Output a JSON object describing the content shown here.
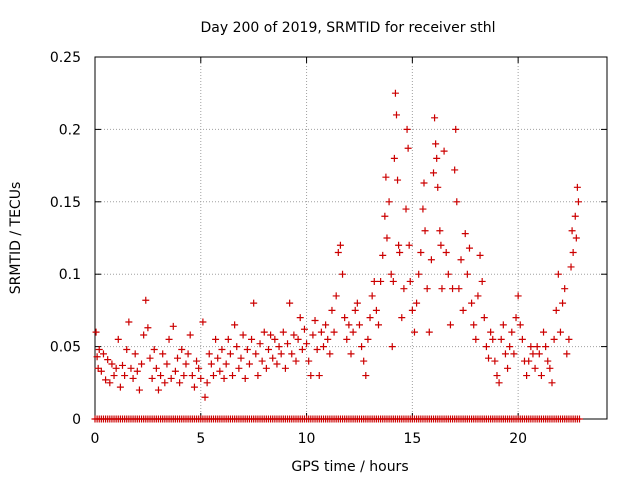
{
  "chart_data": {
    "type": "scatter",
    "title": "Day 200 of 2019, SRMTID for receiver sthl",
    "xlabel": "GPS time / hours",
    "ylabel": "SRMTID / TECUs",
    "xlim": [
      0,
      24.2
    ],
    "ylim": [
      0,
      0.25
    ],
    "x_ticks": [
      0,
      5,
      10,
      15,
      20
    ],
    "x_tick_labels": [
      "0",
      "5",
      "10",
      "15",
      "20"
    ],
    "y_ticks": [
      0,
      0.05,
      0.1,
      0.15,
      0.2,
      0.25
    ],
    "y_tick_labels": [
      "0",
      "0.05",
      "0.1",
      "0.15",
      "0.2",
      "0.25"
    ],
    "grid": true,
    "marker": "plus",
    "series": [
      {
        "name": "SRMTID",
        "color": "#cc0000",
        "points": [
          [
            0.05,
            0.06
          ],
          [
            0.1,
            0.043
          ],
          [
            0.15,
            0.035
          ],
          [
            0.2,
            0.048
          ],
          [
            0.3,
            0.033
          ],
          [
            0.4,
            0.045
          ],
          [
            0.5,
            0.027
          ],
          [
            0.6,
            0.041
          ],
          [
            0.7,
            0.025
          ],
          [
            0.8,
            0.038
          ],
          [
            0.9,
            0.03
          ],
          [
            1.0,
            0.035
          ],
          [
            1.1,
            0.055
          ],
          [
            1.2,
            0.022
          ],
          [
            1.3,
            0.037
          ],
          [
            1.4,
            0.03
          ],
          [
            1.5,
            0.048
          ],
          [
            1.6,
            0.067
          ],
          [
            1.7,
            0.035
          ],
          [
            1.8,
            0.028
          ],
          [
            1.9,
            0.045
          ],
          [
            2.0,
            0.033
          ],
          [
            2.1,
            0.02
          ],
          [
            2.2,
            0.038
          ],
          [
            2.3,
            0.058
          ],
          [
            2.4,
            0.082
          ],
          [
            2.5,
            0.063
          ],
          [
            2.6,
            0.042
          ],
          [
            2.7,
            0.028
          ],
          [
            2.8,
            0.048
          ],
          [
            2.9,
            0.035
          ],
          [
            3.0,
            0.02
          ],
          [
            3.1,
            0.03
          ],
          [
            3.2,
            0.045
          ],
          [
            3.3,
            0.025
          ],
          [
            3.4,
            0.038
          ],
          [
            3.5,
            0.055
          ],
          [
            3.6,
            0.028
          ],
          [
            3.7,
            0.064
          ],
          [
            3.8,
            0.033
          ],
          [
            3.9,
            0.042
          ],
          [
            4.0,
            0.025
          ],
          [
            4.1,
            0.048
          ],
          [
            4.2,
            0.03
          ],
          [
            4.3,
            0.038
          ],
          [
            4.4,
            0.045
          ],
          [
            4.5,
            0.058
          ],
          [
            4.6,
            0.03
          ],
          [
            4.7,
            0.022
          ],
          [
            4.8,
            0.04
          ],
          [
            4.9,
            0.035
          ],
          [
            5.0,
            0.028
          ],
          [
            5.1,
            0.067
          ],
          [
            5.2,
            0.015
          ],
          [
            5.3,
            0.025
          ],
          [
            5.4,
            0.045
          ],
          [
            5.5,
            0.038
          ],
          [
            5.6,
            0.03
          ],
          [
            5.7,
            0.055
          ],
          [
            5.8,
            0.042
          ],
          [
            5.9,
            0.033
          ],
          [
            6.0,
            0.048
          ],
          [
            6.1,
            0.028
          ],
          [
            6.2,
            0.038
          ],
          [
            6.3,
            0.055
          ],
          [
            6.4,
            0.045
          ],
          [
            6.5,
            0.03
          ],
          [
            6.6,
            0.065
          ],
          [
            6.7,
            0.05
          ],
          [
            6.8,
            0.035
          ],
          [
            6.9,
            0.042
          ],
          [
            7.0,
            0.058
          ],
          [
            7.1,
            0.028
          ],
          [
            7.2,
            0.048
          ],
          [
            7.3,
            0.038
          ],
          [
            7.4,
            0.055
          ],
          [
            7.5,
            0.08
          ],
          [
            7.6,
            0.045
          ],
          [
            7.7,
            0.03
          ],
          [
            7.8,
            0.052
          ],
          [
            7.9,
            0.04
          ],
          [
            8.0,
            0.06
          ],
          [
            8.1,
            0.035
          ],
          [
            8.2,
            0.048
          ],
          [
            8.3,
            0.058
          ],
          [
            8.4,
            0.042
          ],
          [
            8.5,
            0.055
          ],
          [
            8.6,
            0.038
          ],
          [
            8.7,
            0.05
          ],
          [
            8.8,
            0.045
          ],
          [
            8.9,
            0.06
          ],
          [
            9.0,
            0.035
          ],
          [
            9.1,
            0.052
          ],
          [
            9.2,
            0.08
          ],
          [
            9.3,
            0.045
          ],
          [
            9.4,
            0.058
          ],
          [
            9.5,
            0.04
          ],
          [
            9.6,
            0.055
          ],
          [
            9.7,
            0.07
          ],
          [
            9.8,
            0.048
          ],
          [
            9.9,
            0.062
          ],
          [
            10.0,
            0.052
          ],
          [
            10.1,
            0.04
          ],
          [
            10.2,
            0.03
          ],
          [
            10.3,
            0.058
          ],
          [
            10.4,
            0.068
          ],
          [
            10.5,
            0.048
          ],
          [
            10.6,
            0.03
          ],
          [
            10.7,
            0.06
          ],
          [
            10.8,
            0.05
          ],
          [
            10.9,
            0.065
          ],
          [
            11.0,
            0.055
          ],
          [
            11.1,
            0.045
          ],
          [
            11.2,
            0.075
          ],
          [
            11.3,
            0.06
          ],
          [
            11.4,
            0.085
          ],
          [
            11.5,
            0.115
          ],
          [
            11.6,
            0.12
          ],
          [
            11.7,
            0.1
          ],
          [
            11.8,
            0.07
          ],
          [
            11.9,
            0.055
          ],
          [
            12.0,
            0.065
          ],
          [
            12.1,
            0.045
          ],
          [
            12.2,
            0.06
          ],
          [
            12.3,
            0.075
          ],
          [
            12.4,
            0.08
          ],
          [
            12.5,
            0.065
          ],
          [
            12.6,
            0.05
          ],
          [
            12.7,
            0.04
          ],
          [
            12.8,
            0.03
          ],
          [
            12.9,
            0.055
          ],
          [
            13.0,
            0.07
          ],
          [
            13.1,
            0.085
          ],
          [
            13.2,
            0.095
          ],
          [
            13.3,
            0.075
          ],
          [
            13.4,
            0.065
          ],
          [
            13.5,
            0.095
          ],
          [
            13.6,
            0.113
          ],
          [
            13.7,
            0.14
          ],
          [
            13.75,
            0.167
          ],
          [
            13.8,
            0.125
          ],
          [
            13.9,
            0.15
          ],
          [
            14.0,
            0.1
          ],
          [
            14.05,
            0.05
          ],
          [
            14.1,
            0.095
          ],
          [
            14.15,
            0.18
          ],
          [
            14.2,
            0.225
          ],
          [
            14.25,
            0.21
          ],
          [
            14.3,
            0.165
          ],
          [
            14.35,
            0.12
          ],
          [
            14.4,
            0.115
          ],
          [
            14.5,
            0.07
          ],
          [
            14.6,
            0.09
          ],
          [
            14.7,
            0.145
          ],
          [
            14.75,
            0.2
          ],
          [
            14.8,
            0.187
          ],
          [
            14.85,
            0.12
          ],
          [
            14.9,
            0.095
          ],
          [
            15.0,
            0.075
          ],
          [
            15.1,
            0.06
          ],
          [
            15.2,
            0.08
          ],
          [
            15.3,
            0.1
          ],
          [
            15.4,
            0.115
          ],
          [
            15.5,
            0.145
          ],
          [
            15.55,
            0.163
          ],
          [
            15.6,
            0.13
          ],
          [
            15.7,
            0.09
          ],
          [
            15.8,
            0.06
          ],
          [
            15.9,
            0.11
          ],
          [
            16.0,
            0.17
          ],
          [
            16.05,
            0.208
          ],
          [
            16.1,
            0.19
          ],
          [
            16.15,
            0.18
          ],
          [
            16.2,
            0.16
          ],
          [
            16.3,
            0.13
          ],
          [
            16.35,
            0.12
          ],
          [
            16.4,
            0.09
          ],
          [
            16.5,
            0.185
          ],
          [
            16.6,
            0.115
          ],
          [
            16.7,
            0.1
          ],
          [
            16.8,
            0.065
          ],
          [
            16.9,
            0.09
          ],
          [
            17.0,
            0.172
          ],
          [
            17.05,
            0.2
          ],
          [
            17.1,
            0.15
          ],
          [
            17.2,
            0.09
          ],
          [
            17.3,
            0.11
          ],
          [
            17.4,
            0.075
          ],
          [
            17.5,
            0.128
          ],
          [
            17.6,
            0.1
          ],
          [
            17.7,
            0.118
          ],
          [
            17.8,
            0.08
          ],
          [
            17.9,
            0.065
          ],
          [
            18.0,
            0.055
          ],
          [
            18.1,
            0.085
          ],
          [
            18.2,
            0.113
          ],
          [
            18.3,
            0.095
          ],
          [
            18.4,
            0.07
          ],
          [
            18.5,
            0.05
          ],
          [
            18.6,
            0.042
          ],
          [
            18.7,
            0.06
          ],
          [
            18.8,
            0.055
          ],
          [
            18.9,
            0.04
          ],
          [
            19.0,
            0.03
          ],
          [
            19.1,
            0.025
          ],
          [
            19.2,
            0.055
          ],
          [
            19.3,
            0.065
          ],
          [
            19.4,
            0.045
          ],
          [
            19.5,
            0.035
          ],
          [
            19.6,
            0.05
          ],
          [
            19.7,
            0.06
          ],
          [
            19.8,
            0.045
          ],
          [
            19.9,
            0.07
          ],
          [
            20.0,
            0.085
          ],
          [
            20.1,
            0.065
          ],
          [
            20.2,
            0.055
          ],
          [
            20.3,
            0.04
          ],
          [
            20.4,
            0.03
          ],
          [
            20.5,
            0.04
          ],
          [
            20.6,
            0.05
          ],
          [
            20.7,
            0.045
          ],
          [
            20.8,
            0.035
          ],
          [
            20.9,
            0.05
          ],
          [
            21.0,
            0.045
          ],
          [
            21.1,
            0.03
          ],
          [
            21.2,
            0.06
          ],
          [
            21.3,
            0.05
          ],
          [
            21.4,
            0.04
          ],
          [
            21.5,
            0.035
          ],
          [
            21.6,
            0.025
          ],
          [
            21.7,
            0.055
          ],
          [
            21.8,
            0.075
          ],
          [
            21.9,
            0.1
          ],
          [
            22.0,
            0.06
          ],
          [
            22.1,
            0.08
          ],
          [
            22.2,
            0.09
          ],
          [
            22.3,
            0.045
          ],
          [
            22.4,
            0.055
          ],
          [
            22.5,
            0.105
          ],
          [
            22.55,
            0.13
          ],
          [
            22.6,
            0.115
          ],
          [
            22.7,
            0.14
          ],
          [
            22.75,
            0.125
          ],
          [
            22.8,
            0.16
          ],
          [
            22.85,
            0.15
          ]
        ],
        "zero_samples": {
          "x_start": 0.0,
          "x_end": 22.9,
          "step": 0.1,
          "value": 0
        }
      }
    ]
  }
}
